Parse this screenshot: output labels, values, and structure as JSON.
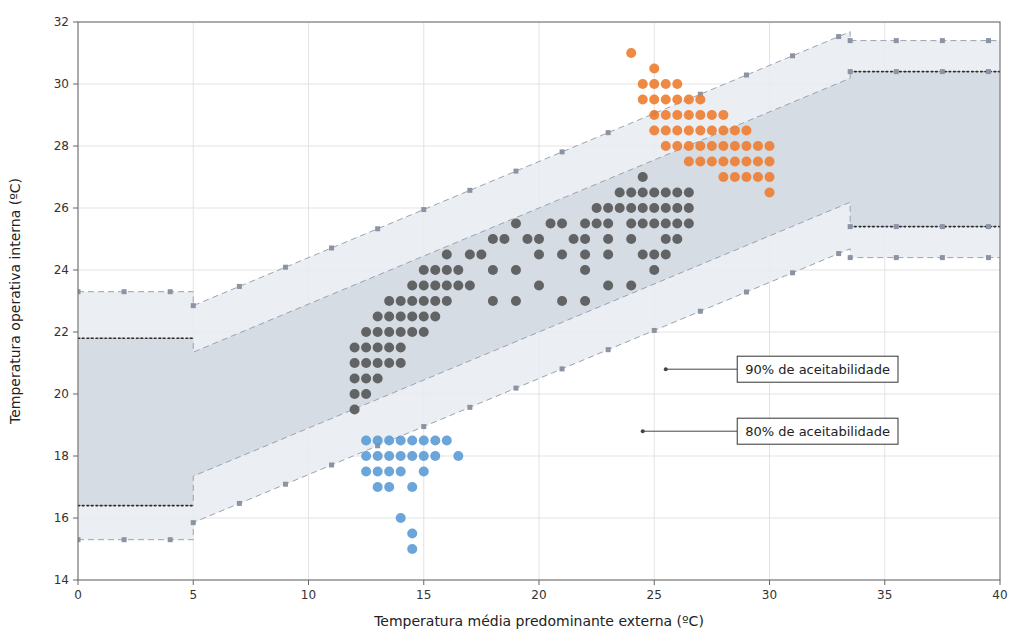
{
  "chart_data": {
    "type": "scatter",
    "xlabel": "Temperatura média predominante externa (ºC)",
    "ylabel": "Temperatura operativa interna (ºC)",
    "xlim": [
      0,
      40
    ],
    "ylim": [
      14,
      32
    ],
    "xticks": [
      0,
      5,
      10,
      15,
      20,
      25,
      30,
      35,
      40
    ],
    "yticks": [
      14,
      16,
      18,
      20,
      22,
      24,
      26,
      28,
      30,
      32
    ],
    "grid": true,
    "series": [
      {
        "type": "band",
        "line_style": "dashed",
        "x": [
          0,
          5,
          5,
          33.5,
          33.5,
          40
        ],
        "lower": [
          15.3,
          15.3,
          15.85,
          24.685,
          24.4,
          24.4
        ],
        "upper": [
          23.3,
          23.3,
          22.85,
          31.685,
          31.4,
          31.4
        ]
      },
      {
        "type": "band",
        "line_style": "dashed",
        "x": [
          0,
          5,
          5,
          33.5,
          33.5,
          40
        ],
        "lower": [
          16.4,
          16.4,
          17.35,
          26.185,
          25.4,
          25.4
        ],
        "upper": [
          21.8,
          21.8,
          21.35,
          30.185,
          30.4,
          30.4
        ]
      },
      {
        "type": "scatter",
        "marker": "square",
        "x": [
          5,
          5,
          7,
          7,
          9,
          9,
          11,
          11,
          13,
          13,
          15,
          15,
          17,
          17,
          19,
          19,
          21,
          21,
          23,
          23,
          25,
          25,
          27,
          27,
          29,
          29,
          31,
          31,
          33,
          33,
          0,
          0,
          2,
          2,
          4,
          4,
          33.5,
          33.5,
          33.5,
          33.5,
          35.5,
          35.5,
          35.5,
          35.5,
          37.5,
          37.5,
          37.5,
          37.5,
          39.5,
          39.5,
          39.5,
          39.5
        ],
        "values": [
          22.85,
          15.85,
          23.47,
          16.47,
          24.09,
          17.09,
          24.71,
          17.71,
          25.33,
          18.33,
          25.95,
          18.95,
          26.57,
          19.57,
          27.19,
          20.19,
          27.81,
          20.81,
          28.43,
          21.43,
          29.05,
          22.05,
          29.67,
          22.67,
          30.29,
          23.29,
          30.91,
          23.91,
          31.53,
          24.53,
          23.3,
          15.3,
          23.3,
          15.3,
          23.3,
          15.3,
          31.4,
          24.4,
          30.4,
          25.4,
          31.4,
          24.4,
          30.4,
          25.4,
          31.4,
          24.4,
          30.4,
          25.4,
          31.4,
          24.4,
          30.4,
          25.4
        ]
      },
      {
        "type": "line",
        "line_style": "dotted",
        "x": [
          0,
          5
        ],
        "values": [
          21.8,
          21.8
        ]
      },
      {
        "type": "line",
        "line_style": "dotted",
        "x": [
          0,
          5
        ],
        "values": [
          16.4,
          16.4
        ]
      },
      {
        "type": "line",
        "line_style": "dotted",
        "x": [
          33.5,
          40
        ],
        "values": [
          30.4,
          30.4
        ]
      },
      {
        "type": "line",
        "line_style": "dotted",
        "x": [
          33.5,
          40
        ],
        "values": [
          25.4,
          25.4
        ]
      },
      {
        "type": "scatter",
        "marker": "circle",
        "color": "#555555",
        "x": [
          12,
          12,
          12,
          12,
          12,
          12.5,
          12.5,
          12.5,
          12.5,
          12.5,
          13,
          13,
          13,
          13,
          13,
          13.5,
          13.5,
          13.5,
          13.5,
          13.5,
          14,
          14,
          14,
          14,
          14,
          14.5,
          14.5,
          14.5,
          14.5,
          15,
          15,
          15,
          15,
          15,
          15.5,
          15.5,
          15.5,
          15.5,
          16,
          16,
          16,
          16,
          16.5,
          16.5,
          17,
          17.5,
          18,
          18.5,
          19,
          19.5,
          20,
          20.5,
          21,
          21.5,
          21,
          20,
          19,
          18,
          17,
          22,
          22,
          22,
          22.5,
          22.5,
          23,
          23,
          23,
          23.5,
          23.5,
          24,
          24,
          24,
          24.5,
          24.5,
          24.5,
          24.5,
          25,
          25,
          25,
          25.5,
          25.5,
          25.5,
          25.5,
          26,
          26,
          26,
          26,
          26.5,
          26.5,
          26.5,
          22,
          23,
          24,
          24.5,
          25,
          25.5,
          25,
          24,
          23,
          22,
          21,
          20,
          19,
          18
        ],
        "values": [
          21.5,
          21.0,
          20.5,
          20.0,
          19.5,
          22.0,
          21.5,
          21.0,
          20.5,
          20.0,
          22.5,
          22.0,
          21.5,
          21.0,
          20.5,
          23.0,
          22.5,
          22.0,
          21.5,
          21.0,
          23.0,
          22.5,
          22.0,
          21.5,
          21.0,
          23.5,
          23.0,
          22.5,
          22.0,
          24.0,
          23.5,
          23.0,
          22.5,
          22.0,
          24.0,
          23.5,
          23.0,
          22.5,
          24.5,
          24.0,
          23.5,
          23.0,
          24.0,
          23.5,
          24.5,
          24.5,
          25.0,
          25.0,
          25.5,
          25.0,
          25.0,
          25.5,
          25.5,
          25.0,
          24.5,
          24.5,
          24.0,
          24.0,
          23.5,
          25.5,
          25.0,
          24.5,
          26.0,
          25.5,
          26.0,
          25.5,
          25.0,
          26.5,
          26.0,
          26.5,
          26.0,
          25.5,
          27.0,
          26.5,
          26.0,
          25.5,
          26.5,
          26.0,
          25.5,
          26.5,
          26.0,
          25.5,
          25.0,
          26.5,
          26.0,
          25.5,
          25.0,
          26.5,
          26.0,
          25.5,
          24.0,
          24.5,
          25.0,
          24.5,
          24.5,
          24.5,
          24.0,
          23.5,
          23.5,
          23.0,
          23.0,
          23.5,
          23.0,
          23.0
        ]
      },
      {
        "type": "scatter",
        "marker": "circle",
        "color": "#5B9BD5",
        "x": [
          12.5,
          12.5,
          12.5,
          13,
          13,
          13,
          13,
          13.5,
          13.5,
          13.5,
          14,
          14,
          14,
          14.5,
          14.5,
          15,
          15,
          15,
          15.5,
          15.5,
          16,
          16.5,
          14,
          14.5,
          14.5,
          13.5,
          14.5
        ],
        "values": [
          18.5,
          18.0,
          17.5,
          18.5,
          18.0,
          17.5,
          17.0,
          18.5,
          18.0,
          17.5,
          18.5,
          18.0,
          17.5,
          18.5,
          18.0,
          18.5,
          18.0,
          17.5,
          18.5,
          18.0,
          18.5,
          18.0,
          16.0,
          15.5,
          15.0,
          17.0,
          17.0
        ]
      },
      {
        "type": "scatter",
        "marker": "circle",
        "color": "#ED7D31",
        "x": [
          24,
          24.5,
          24.5,
          25,
          25,
          25,
          25,
          25,
          25.5,
          25.5,
          25.5,
          25.5,
          25.5,
          26,
          26,
          26,
          26,
          26,
          26.5,
          26.5,
          26.5,
          26.5,
          26.5,
          27,
          27,
          27,
          27,
          27,
          27.5,
          27.5,
          27.5,
          27.5,
          28,
          28,
          28,
          28,
          28,
          28.5,
          28.5,
          28.5,
          28.5,
          29,
          29,
          29,
          29,
          29.5,
          29.5,
          29.5,
          30,
          30,
          30,
          30
        ],
        "values": [
          31.0,
          30.0,
          29.5,
          30.5,
          30.0,
          29.5,
          29.0,
          28.5,
          30.0,
          29.5,
          29.0,
          28.5,
          28.0,
          30.0,
          29.5,
          29.0,
          28.5,
          28.0,
          29.5,
          29.0,
          28.5,
          28.0,
          27.5,
          29.5,
          29.0,
          28.5,
          28.0,
          27.5,
          29.0,
          28.5,
          28.0,
          27.5,
          29.0,
          28.5,
          28.0,
          27.5,
          27.0,
          28.5,
          28.0,
          27.5,
          27.0,
          28.5,
          28.0,
          27.5,
          27.0,
          28.0,
          27.5,
          27.0,
          28.0,
          27.5,
          27.0,
          26.5
        ]
      }
    ],
    "annotations": [
      {
        "text": "90% de aceitabilidade",
        "x": 25.5,
        "y": 20.8
      },
      {
        "text": "80% de aceitabilidade",
        "x": 24.5,
        "y": 18.8
      }
    ]
  }
}
